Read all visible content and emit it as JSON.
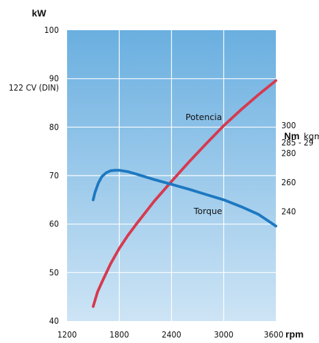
{
  "chart_data": {
    "type": "line",
    "x_unit": "rpm",
    "xlim": [
      1200,
      3600
    ],
    "x_ticks": [
      1200,
      1800,
      2400,
      3000,
      3600
    ],
    "left_axis": {
      "unit": "kW",
      "ylim": [
        40,
        100
      ],
      "ticks": [
        40,
        50,
        60,
        70,
        80,
        90,
        100
      ]
    },
    "left_annotation": {
      "text": "122 CV (DIN)",
      "value": 89
    },
    "right_axis": {
      "unit_bold": "Nm",
      "unit_regular": "kgm",
      "ticks": [
        {
          "label": "300",
          "value": 80.3
        },
        {
          "label": "285 - 29",
          "value": 76.8
        },
        {
          "label": "280",
          "value": 74.6
        },
        {
          "label": "260",
          "value": 68.6
        },
        {
          "label": "240",
          "value": 62.6
        }
      ]
    },
    "grid": true,
    "series": [
      {
        "name": "Potencia",
        "color": "#d63a4f",
        "x": [
          1500,
          1550,
          1600,
          1700,
          1800,
          1900,
          2000,
          2200,
          2400,
          2600,
          2800,
          3000,
          3200,
          3400,
          3600
        ],
        "y": [
          43,
          46,
          48,
          51.8,
          55,
          57.7,
          60.1,
          64.7,
          68.8,
          72.8,
          76.6,
          80.3,
          83.6,
          86.7,
          89.6
        ]
      },
      {
        "name": "Torque",
        "color": "#1d78c1",
        "x": [
          1500,
          1520,
          1560,
          1600,
          1650,
          1700,
          1750,
          1800,
          1900,
          2000,
          2200,
          2400,
          2600,
          2800,
          3000,
          3200,
          3400,
          3600
        ],
        "y": [
          65,
          66.5,
          68.5,
          69.8,
          70.6,
          71,
          71.1,
          71.1,
          70.8,
          70.3,
          69.2,
          68.2,
          67.2,
          66.1,
          65,
          63.6,
          62,
          59.6
        ]
      }
    ]
  }
}
